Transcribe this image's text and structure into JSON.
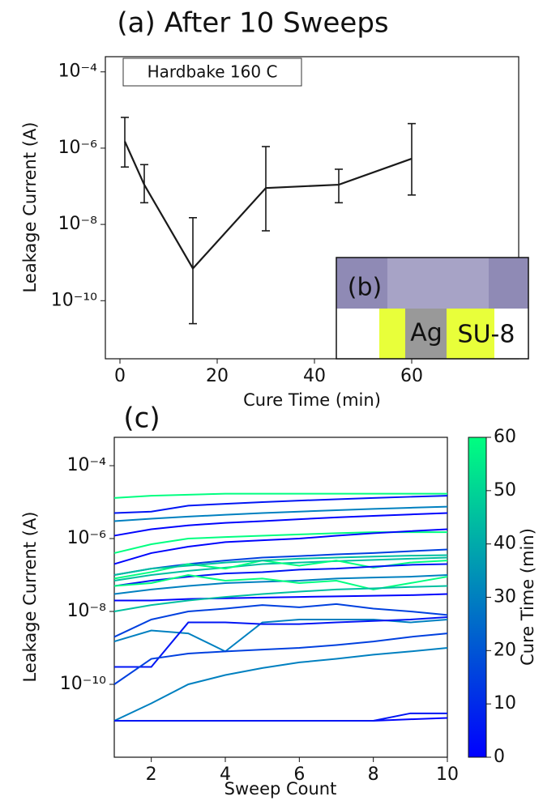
{
  "chart_data": [
    {
      "type": "errorbar-line",
      "title": "(a) After 10 Sweeps",
      "annotation": "Hardbake 160 C",
      "x_label": "Cure Time (min)",
      "y_label": "Leakage Current (A)",
      "x": [
        1,
        5,
        15,
        30,
        45,
        60
      ],
      "values": [
        1.5e-06,
        1.1e-07,
        7e-10,
        9e-08,
        1.1e-07,
        5.3e-07
      ],
      "err_low": [
        3.2e-07,
        3.7e-08,
        2.5e-11,
        6.8e-09,
        3.7e-08,
        5.9e-08
      ],
      "err_high": [
        6.4e-06,
        3.7e-07,
        1.5e-08,
        1.1e-06,
        2.8e-07,
        4.4e-06
      ],
      "color": "#1a1a1a",
      "log_y": true,
      "xlim": [
        -3,
        82
      ],
      "xticks": [
        0,
        20,
        40,
        60
      ],
      "ylim": [
        3e-12,
        0.00025
      ],
      "yticks": [
        {
          "value": 0.0001,
          "label": "10⁻⁴"
        },
        {
          "value": 1e-06,
          "label": "10⁻⁶"
        },
        {
          "value": 1e-08,
          "label": "10⁻⁸"
        },
        {
          "value": 1e-10,
          "label": "10⁻¹⁰"
        }
      ]
    },
    {
      "type": "line",
      "title": "(c)",
      "x_label": "Sweep Count",
      "y_label": "Leakage Current (A)",
      "log_y": true,
      "x": [
        1,
        2,
        3,
        4,
        5,
        6,
        7,
        8,
        9,
        10
      ],
      "xlim": [
        1,
        10
      ],
      "xticks": [
        2,
        4,
        6,
        8,
        10
      ],
      "ylim": [
        1e-12,
        0.0006
      ],
      "yticks": [
        {
          "value": 0.0001,
          "label": "10⁻⁴"
        },
        {
          "value": 1e-06,
          "label": "10⁻⁶"
        },
        {
          "value": 1e-08,
          "label": "10⁻⁸"
        },
        {
          "value": 1e-10,
          "label": "10⁻¹⁰"
        }
      ],
      "colorbar": {
        "label": "Cure Time (min)",
        "colormap": [
          "#0000ff",
          "#00ff80"
        ],
        "lim": [
          0,
          60
        ],
        "ticks": [
          0,
          10,
          20,
          30,
          40,
          50,
          60
        ]
      },
      "series": [
        {
          "cure_time": 60,
          "values": [
            1.3e-05,
            1.5e-05,
            1.6e-05,
            1.7e-05,
            1.7e-05,
            1.7e-05,
            1.7e-05,
            1.7e-05,
            1.7e-05,
            1.7e-05
          ]
        },
        {
          "cure_time": 5,
          "values": [
            5e-06,
            5.5e-06,
            8e-06,
            9e-06,
            1e-05,
            1.1e-05,
            1.2e-05,
            1.3e-05,
            1.4e-05,
            1.5e-05
          ]
        },
        {
          "cure_time": 30,
          "values": [
            3e-06,
            3.5e-06,
            4e-06,
            4.5e-06,
            5e-06,
            5.5e-06,
            6e-06,
            6.5e-06,
            7e-06,
            7.5e-06
          ]
        },
        {
          "cure_time": 1,
          "values": [
            1.2e-06,
            1.8e-06,
            2.3e-06,
            2.7e-06,
            3e-06,
            3.4e-06,
            3.8e-06,
            4.2e-06,
            4.6e-06,
            5e-06
          ]
        },
        {
          "cure_time": 60,
          "values": [
            4e-07,
            7e-07,
            1e-06,
            1.1e-06,
            1.2e-06,
            1.3e-06,
            1.4e-06,
            1.5e-06,
            1.5e-06,
            1.5e-06
          ]
        },
        {
          "cure_time": 1,
          "values": [
            2e-07,
            4e-07,
            6e-07,
            8e-07,
            9e-07,
            1e-06,
            1.2e-06,
            1.4e-06,
            1.6e-06,
            1.8e-06
          ]
        },
        {
          "cure_time": 15,
          "values": [
            1e-07,
            1.5e-07,
            2e-07,
            2.5e-07,
            3e-07,
            3.3e-07,
            3.7e-07,
            4e-07,
            4.5e-07,
            5e-07
          ]
        },
        {
          "cure_time": 45,
          "values": [
            7e-08,
            1e-07,
            1.3e-07,
            1.6e-07,
            2e-07,
            2.2e-07,
            2.4e-07,
            2.6e-07,
            2.8e-07,
            3e-07
          ]
        },
        {
          "cure_time": 60,
          "values": [
            8e-08,
            1.2e-07,
            2e-07,
            1.5e-07,
            2.5e-07,
            1.8e-07,
            2.5e-07,
            1.6e-07,
            2.2e-07,
            2.5e-07
          ]
        },
        {
          "cure_time": 45,
          "values": [
            1e-07,
            1.5e-07,
            1.8e-07,
            2.2e-07,
            2.5e-07,
            2.8e-07,
            3e-07,
            3.2e-07,
            3.4e-07,
            3.5e-07
          ]
        },
        {
          "cure_time": 5,
          "values": [
            5e-08,
            7e-08,
            9e-08,
            1.1e-07,
            1.2e-07,
            1.4e-07,
            1.5e-07,
            1.7e-07,
            1.9e-07,
            2e-07
          ]
        },
        {
          "cure_time": 30,
          "values": [
            3e-08,
            4e-08,
            5e-08,
            6e-08,
            6.5e-08,
            7e-08,
            8e-08,
            8.5e-08,
            9e-08,
            1e-07
          ]
        },
        {
          "cure_time": 60,
          "values": [
            5e-08,
            6e-08,
            1e-07,
            7e-08,
            8e-08,
            6e-08,
            7e-08,
            4e-08,
            6e-08,
            9e-08
          ]
        },
        {
          "cure_time": 1,
          "values": [
            2e-08,
            2e-08,
            2.2e-08,
            2.3e-08,
            2.4e-08,
            2.5e-08,
            2.6e-08,
            2.7e-08,
            2.8e-08,
            3e-08
          ]
        },
        {
          "cure_time": 45,
          "values": [
            1e-08,
            1.5e-08,
            2e-08,
            2.5e-08,
            3e-08,
            3.5e-08,
            4e-08,
            4.3e-08,
            4.7e-08,
            5e-08
          ]
        },
        {
          "cure_time": 15,
          "values": [
            2e-09,
            6e-09,
            1e-08,
            1.2e-08,
            1.5e-08,
            1.3e-08,
            1.6e-08,
            1.2e-08,
            1e-08,
            8e-09
          ]
        },
        {
          "cure_time": 30,
          "values": [
            1.5e-09,
            3e-09,
            2.5e-09,
            8e-10,
            5e-09,
            6e-09,
            6e-09,
            6e-09,
            5e-09,
            6e-09
          ]
        },
        {
          "cure_time": 5,
          "values": [
            3e-10,
            3e-10,
            5e-09,
            5e-09,
            4.5e-09,
            4.5e-09,
            5e-09,
            5.5e-09,
            6e-09,
            7e-09
          ]
        },
        {
          "cure_time": 15,
          "values": [
            1e-10,
            5e-10,
            7e-10,
            8e-10,
            9e-10,
            1e-09,
            1.2e-09,
            1.5e-09,
            2e-09,
            2.5e-09
          ]
        },
        {
          "cure_time": 30,
          "values": [
            1e-11,
            3e-11,
            1e-10,
            1.8e-10,
            2.8e-10,
            4e-10,
            5e-10,
            6.5e-10,
            8e-10,
            1e-09
          ]
        },
        {
          "cure_time": 1,
          "values": [
            1e-11,
            1e-11,
            1e-11,
            1e-11,
            1e-11,
            1e-11,
            1e-11,
            1e-11,
            1.1e-11,
            1.2e-11
          ]
        },
        {
          "cure_time": 5,
          "values": [
            1e-11,
            1e-11,
            1e-11,
            1e-11,
            1e-11,
            1e-11,
            1e-11,
            1e-11,
            1.6e-11,
            1.6e-11
          ]
        }
      ]
    }
  ],
  "inset": {
    "label": "(b)",
    "materials": [
      "Ag",
      "SU-8"
    ]
  }
}
